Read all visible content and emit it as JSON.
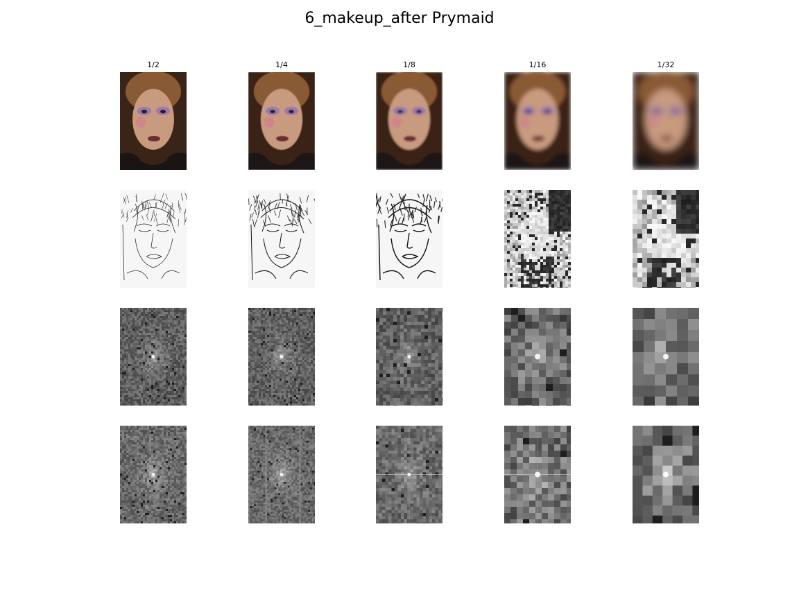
{
  "figure": {
    "title": "6_makeup_after Prymaid"
  },
  "columns": [
    {
      "label": "1/2"
    },
    {
      "label": "1/4"
    },
    {
      "label": "1/8"
    },
    {
      "label": "1/16"
    },
    {
      "label": "1/32"
    }
  ],
  "rows": [
    {
      "kind": "color-face-photo"
    },
    {
      "kind": "edge-map"
    },
    {
      "kind": "frequency-spectrum"
    },
    {
      "kind": "frequency-spectrum"
    }
  ],
  "colors": {
    "background": "#ffffff",
    "skin": "#c89a7e",
    "hair": "#8a5a35",
    "backdrop": "#3a2418",
    "eyeshadow": "#9a78b0",
    "lips": "#6e2c36"
  }
}
